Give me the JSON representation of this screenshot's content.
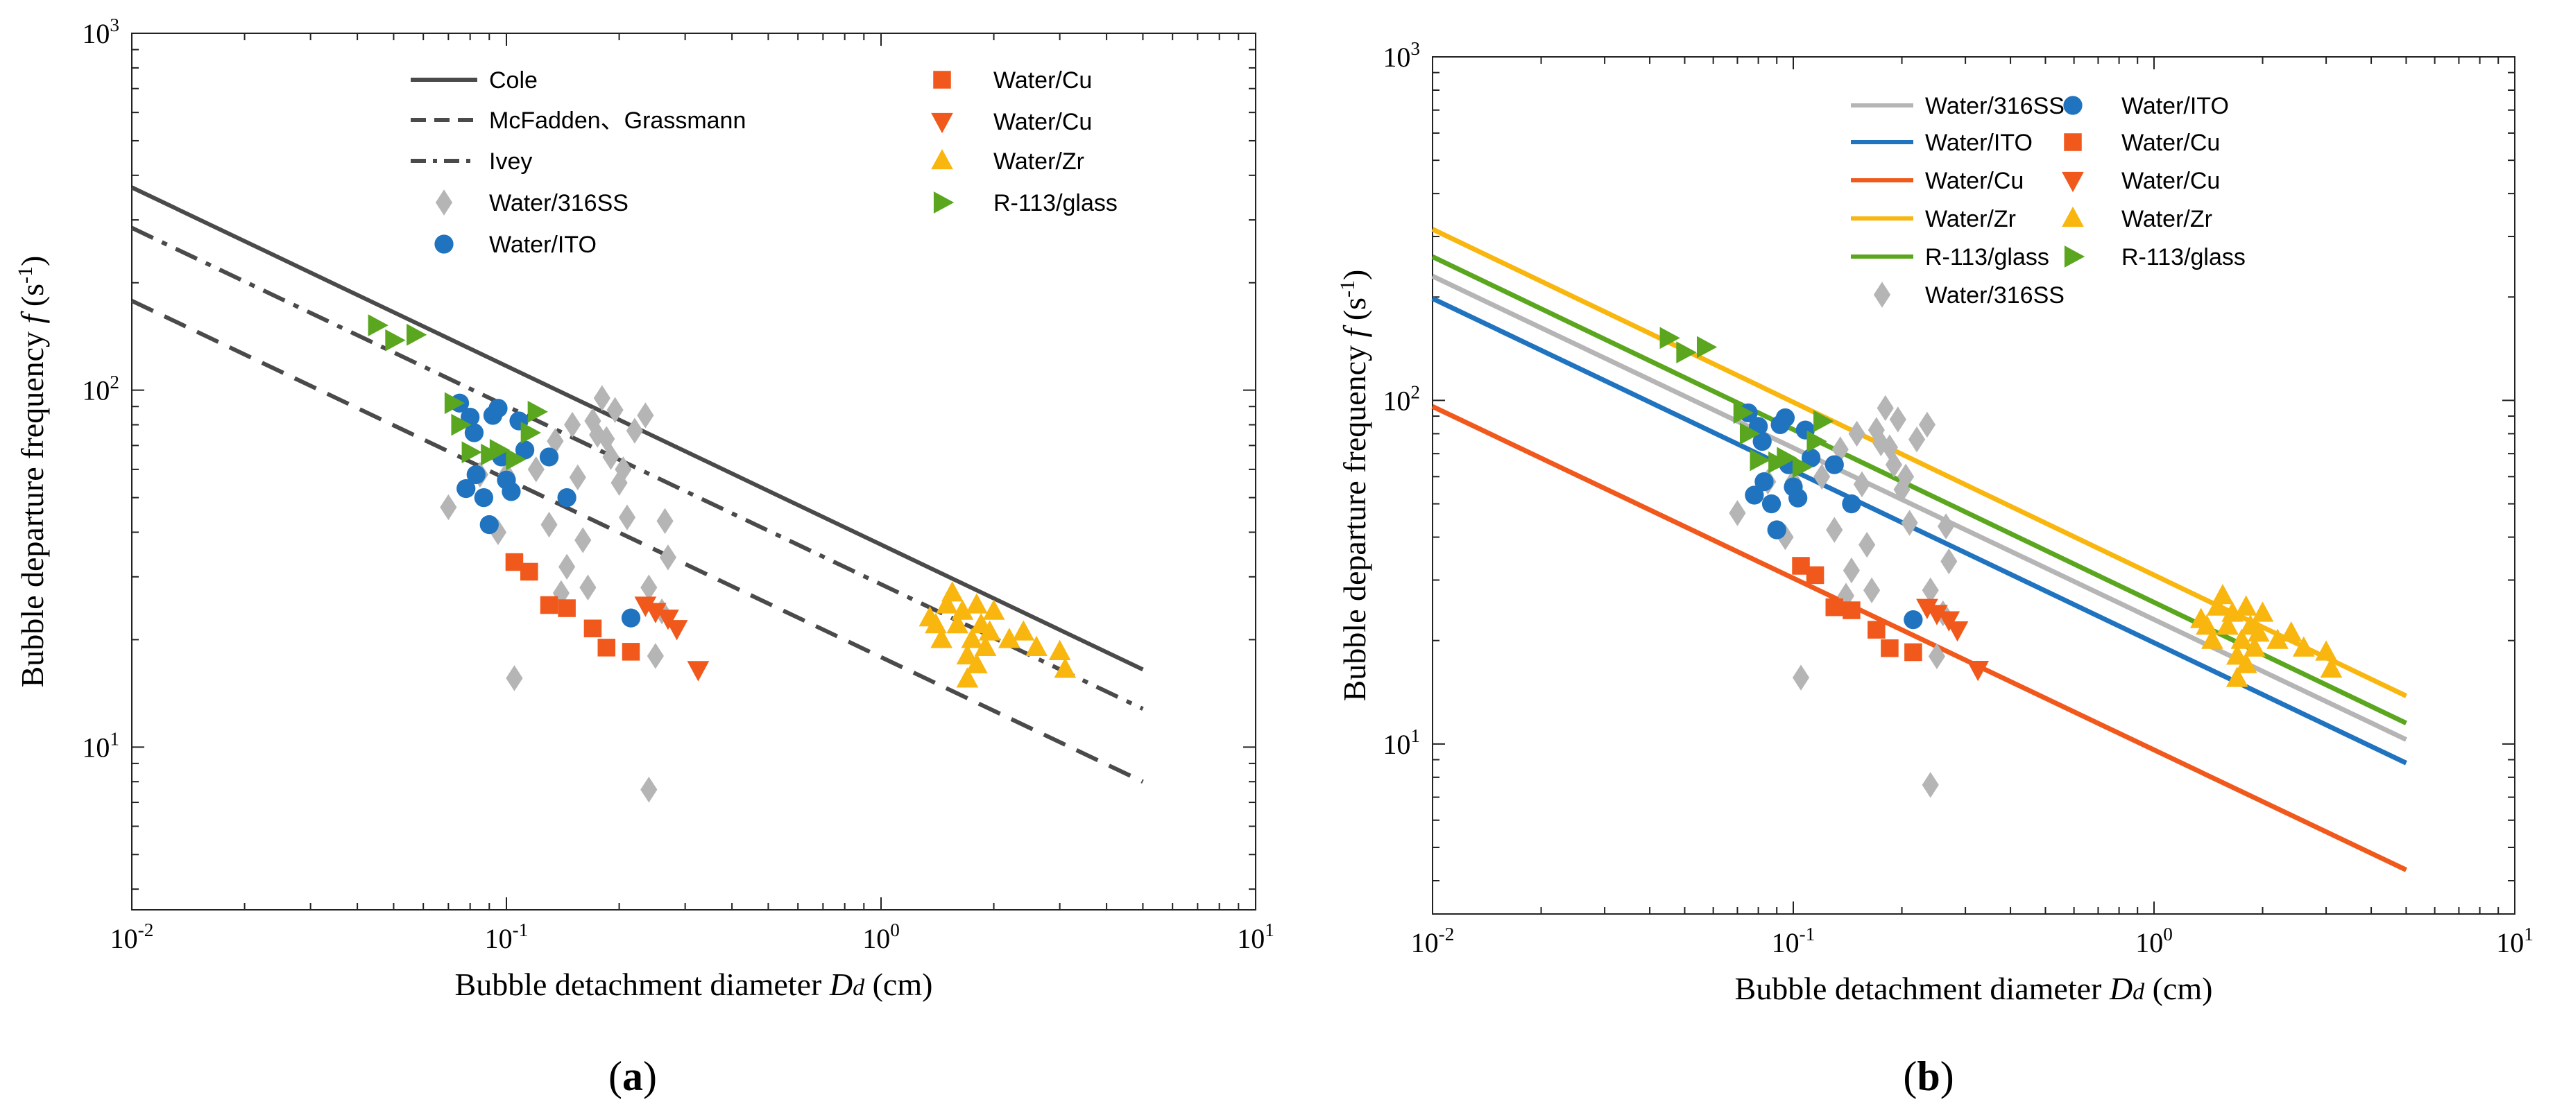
{
  "figure": {
    "panel_a_label": "(a)",
    "panel_b_label": "(b)"
  },
  "legend_line_colors": {
    "Water/316SS": "#b5b5b5",
    "Water/ITO": "#1f73bf",
    "Water/Cu": "#f0581c",
    "Water/Zr": "#f8b60f",
    "R-113/glass": "#5aa61e"
  },
  "colors": {
    "Water/316SS": "#b5b5b5",
    "Water/ITO": "#1f73bf",
    "Water/Cu": "#f0581c",
    "Water/Zr": "#f8b60f",
    "R-113/glass": "#5aa61e",
    "correlation": "#4a4a4a"
  },
  "chart_data": [
    {
      "type": "scatter",
      "panel": "(a)",
      "xlabel": "Bubble detachment diameter",
      "xlabel_symbol": "Dd",
      "xlabel_unit": "(cm)",
      "ylabel": "Bubble departure frequency",
      "ylabel_symbol": "f",
      "ylabel_unit": "(s-1)",
      "xscale": "log",
      "yscale": "log",
      "xlim": [
        0.01,
        10
      ],
      "ylim": [
        3.5,
        1000
      ],
      "xtick_labels": [
        "10-2",
        "10-1",
        "100",
        "101"
      ],
      "ytick_labels": [
        "101",
        "102",
        "103"
      ],
      "legend": {
        "position": "top",
        "lines": [
          "Cole",
          "McFadden、Grassmann",
          "Ivey"
        ],
        "markers_col1": [
          "Water/316SS",
          "Water/ITO"
        ],
        "markers_col2": [
          "Water/Cu",
          "Water/Cu",
          "Water/Zr",
          "R-113/glass"
        ]
      },
      "correlation_lines": [
        {
          "name": "Cole",
          "style": "solid",
          "x": [
            0.01,
            5
          ],
          "y": [
            370,
            16.5
          ]
        },
        {
          "name": "McFadden、Grassmann",
          "style": "dashed",
          "x": [
            0.01,
            5
          ],
          "y": [
            178,
            8
          ]
        },
        {
          "name": "Ivey",
          "style": "dashdot",
          "x": [
            0.01,
            5
          ],
          "y": [
            285,
            12.8
          ]
        }
      ],
      "series": [
        {
          "name": "Water/316SS",
          "marker": "diamond",
          "points": [
            [
              0.07,
              47
            ],
            [
              0.085,
              58
            ],
            [
              0.095,
              40
            ],
            [
              0.1,
              58
            ],
            [
              0.105,
              15.6
            ],
            [
              0.12,
              60
            ],
            [
              0.13,
              42
            ],
            [
              0.135,
              72
            ],
            [
              0.14,
              27
            ],
            [
              0.145,
              32
            ],
            [
              0.15,
              80
            ],
            [
              0.155,
              57
            ],
            [
              0.16,
              38
            ],
            [
              0.165,
              28
            ],
            [
              0.17,
              82
            ],
            [
              0.175,
              75
            ],
            [
              0.18,
              95
            ],
            [
              0.185,
              73
            ],
            [
              0.19,
              65
            ],
            [
              0.195,
              88
            ],
            [
              0.2,
              55
            ],
            [
              0.205,
              60
            ],
            [
              0.21,
              44
            ],
            [
              0.22,
              77
            ],
            [
              0.235,
              85
            ],
            [
              0.24,
              28
            ],
            [
              0.25,
              18
            ],
            [
              0.26,
              24
            ],
            [
              0.265,
              43
            ],
            [
              0.27,
              34
            ],
            [
              0.24,
              7.6
            ]
          ]
        },
        {
          "name": "Water/ITO",
          "marker": "circle",
          "points": [
            [
              0.075,
              92
            ],
            [
              0.078,
              53
            ],
            [
              0.08,
              84
            ],
            [
              0.082,
              76
            ],
            [
              0.083,
              58
            ],
            [
              0.087,
              50
            ],
            [
              0.09,
              42
            ],
            [
              0.092,
              85
            ],
            [
              0.095,
              89
            ],
            [
              0.097,
              65
            ],
            [
              0.1,
              56
            ],
            [
              0.103,
              52
            ],
            [
              0.108,
              82
            ],
            [
              0.112,
              68
            ],
            [
              0.13,
              65
            ],
            [
              0.145,
              50
            ],
            [
              0.215,
              23
            ]
          ]
        },
        {
          "name": "Water/Cu (square)",
          "marker": "square",
          "points": [
            [
              0.105,
              33
            ],
            [
              0.115,
              31
            ],
            [
              0.13,
              25
            ],
            [
              0.145,
              24.5
            ],
            [
              0.17,
              21.5
            ],
            [
              0.185,
              19
            ],
            [
              0.215,
              18.5
            ]
          ]
        },
        {
          "name": "Water/Cu (triangle-down)",
          "marker": "triangle-down",
          "points": [
            [
              0.235,
              25
            ],
            [
              0.25,
              24
            ],
            [
              0.27,
              23
            ],
            [
              0.285,
              21.5
            ],
            [
              0.325,
              16.5
            ]
          ]
        },
        {
          "name": "Water/Zr",
          "marker": "triangle-up",
          "points": [
            [
              1.35,
              23
            ],
            [
              1.4,
              22
            ],
            [
              1.45,
              20
            ],
            [
              1.5,
              25
            ],
            [
              1.55,
              27
            ],
            [
              1.6,
              22
            ],
            [
              1.65,
              24
            ],
            [
              1.7,
              18
            ],
            [
              1.75,
              20
            ],
            [
              1.8,
              25
            ],
            [
              1.85,
              22
            ],
            [
              1.9,
              19
            ],
            [
              1.95,
              21
            ],
            [
              2.0,
              24
            ],
            [
              1.7,
              15.5
            ],
            [
              1.8,
              17
            ],
            [
              2.2,
              20
            ],
            [
              2.4,
              21
            ],
            [
              2.6,
              19
            ],
            [
              3.0,
              18.5
            ],
            [
              3.1,
              16.5
            ]
          ]
        },
        {
          "name": "R-113/glass",
          "marker": "triangle-right",
          "points": [
            [
              0.045,
              152
            ],
            [
              0.05,
              138
            ],
            [
              0.057,
              143
            ],
            [
              0.072,
              92
            ],
            [
              0.075,
              80
            ],
            [
              0.08,
              67
            ],
            [
              0.09,
              66
            ],
            [
              0.095,
              68
            ],
            [
              0.105,
              64
            ],
            [
              0.115,
              76
            ],
            [
              0.12,
              87
            ]
          ]
        }
      ]
    },
    {
      "type": "scatter",
      "panel": "(b)",
      "xlabel": "Bubble detachment diameter",
      "xlabel_symbol": "Dd",
      "xlabel_unit": "(cm)",
      "ylabel": "Bubble departure frequency",
      "ylabel_symbol": "f",
      "ylabel_unit": "(s-1)",
      "xscale": "log",
      "yscale": "log",
      "xlim": [
        0.01,
        10
      ],
      "ylim": [
        3.2,
        1000
      ],
      "xtick_labels": [
        "10-2",
        "10-1",
        "100",
        "101"
      ],
      "ytick_labels": [
        "101",
        "102",
        "103"
      ],
      "legend": {
        "position": "top",
        "lines": [
          "Water/316SS",
          "Water/ITO",
          "Water/Cu",
          "Water/Zr",
          "R-113/glass"
        ],
        "markers_col1": [
          "Water/316SS"
        ],
        "markers_col2": [
          "Water/ITO",
          "Water/Cu",
          "Water/Cu",
          "Water/Zr",
          "R-113/glass"
        ]
      },
      "correlation_lines": [
        {
          "name": "Water/Zr",
          "style": "solid",
          "x": [
            0.01,
            5
          ],
          "y": [
            315,
            13.8
          ]
        },
        {
          "name": "R-113/glass",
          "style": "solid",
          "x": [
            0.01,
            5
          ],
          "y": [
            262,
            11.5
          ]
        },
        {
          "name": "Water/316SS",
          "style": "solid",
          "x": [
            0.01,
            5
          ],
          "y": [
            230,
            10.3
          ]
        },
        {
          "name": "Water/ITO",
          "style": "solid",
          "x": [
            0.01,
            5
          ],
          "y": [
            198,
            8.8
          ]
        },
        {
          "name": "Water/Cu",
          "style": "solid",
          "x": [
            0.01,
            5
          ],
          "y": [
            96,
            4.3
          ]
        }
      ],
      "series": [
        {
          "name": "Water/316SS",
          "marker": "diamond",
          "points": [
            [
              0.07,
              47
            ],
            [
              0.085,
              58
            ],
            [
              0.095,
              40
            ],
            [
              0.1,
              58
            ],
            [
              0.105,
              15.6
            ],
            [
              0.12,
              60
            ],
            [
              0.13,
              42
            ],
            [
              0.135,
              72
            ],
            [
              0.14,
              27
            ],
            [
              0.145,
              32
            ],
            [
              0.15,
              80
            ],
            [
              0.155,
              57
            ],
            [
              0.16,
              38
            ],
            [
              0.165,
              28
            ],
            [
              0.17,
              82
            ],
            [
              0.175,
              75
            ],
            [
              0.18,
              95
            ],
            [
              0.185,
              73
            ],
            [
              0.19,
              65
            ],
            [
              0.195,
              88
            ],
            [
              0.2,
              55
            ],
            [
              0.205,
              60
            ],
            [
              0.21,
              44
            ],
            [
              0.22,
              77
            ],
            [
              0.235,
              85
            ],
            [
              0.24,
              28
            ],
            [
              0.25,
              18
            ],
            [
              0.26,
              24
            ],
            [
              0.265,
              43
            ],
            [
              0.27,
              34
            ],
            [
              0.24,
              7.6
            ]
          ]
        },
        {
          "name": "Water/ITO",
          "marker": "circle",
          "points": [
            [
              0.075,
              92
            ],
            [
              0.078,
              53
            ],
            [
              0.08,
              84
            ],
            [
              0.082,
              76
            ],
            [
              0.083,
              58
            ],
            [
              0.087,
              50
            ],
            [
              0.09,
              42
            ],
            [
              0.092,
              85
            ],
            [
              0.095,
              89
            ],
            [
              0.097,
              65
            ],
            [
              0.1,
              56
            ],
            [
              0.103,
              52
            ],
            [
              0.108,
              82
            ],
            [
              0.112,
              68
            ],
            [
              0.13,
              65
            ],
            [
              0.145,
              50
            ],
            [
              0.215,
              23
            ]
          ]
        },
        {
          "name": "Water/Cu (square)",
          "marker": "square",
          "points": [
            [
              0.105,
              33
            ],
            [
              0.115,
              31
            ],
            [
              0.13,
              25
            ],
            [
              0.145,
              24.5
            ],
            [
              0.17,
              21.5
            ],
            [
              0.185,
              19
            ],
            [
              0.215,
              18.5
            ]
          ]
        },
        {
          "name": "Water/Cu (triangle-down)",
          "marker": "triangle-down",
          "points": [
            [
              0.235,
              25
            ],
            [
              0.25,
              24
            ],
            [
              0.27,
              23
            ],
            [
              0.285,
              21.5
            ],
            [
              0.325,
              16.5
            ]
          ]
        },
        {
          "name": "Water/Zr",
          "marker": "triangle-up",
          "points": [
            [
              1.35,
              23
            ],
            [
              1.4,
              22
            ],
            [
              1.45,
              20
            ],
            [
              1.5,
              25
            ],
            [
              1.55,
              27
            ],
            [
              1.6,
              22
            ],
            [
              1.65,
              24
            ],
            [
              1.7,
              18
            ],
            [
              1.75,
              20
            ],
            [
              1.8,
              25
            ],
            [
              1.85,
              22
            ],
            [
              1.9,
              19
            ],
            [
              1.95,
              21
            ],
            [
              2.0,
              24
            ],
            [
              1.7,
              15.5
            ],
            [
              1.8,
              17
            ],
            [
              2.2,
              20
            ],
            [
              2.4,
              21
            ],
            [
              2.6,
              19
            ],
            [
              3.0,
              18.5
            ],
            [
              3.1,
              16.5
            ]
          ]
        },
        {
          "name": "R-113/glass",
          "marker": "triangle-right",
          "points": [
            [
              0.045,
              152
            ],
            [
              0.05,
              138
            ],
            [
              0.057,
              143
            ],
            [
              0.072,
              92
            ],
            [
              0.075,
              80
            ],
            [
              0.08,
              67
            ],
            [
              0.09,
              66
            ],
            [
              0.095,
              68
            ],
            [
              0.105,
              64
            ],
            [
              0.115,
              76
            ],
            [
              0.12,
              87
            ]
          ]
        }
      ]
    }
  ]
}
